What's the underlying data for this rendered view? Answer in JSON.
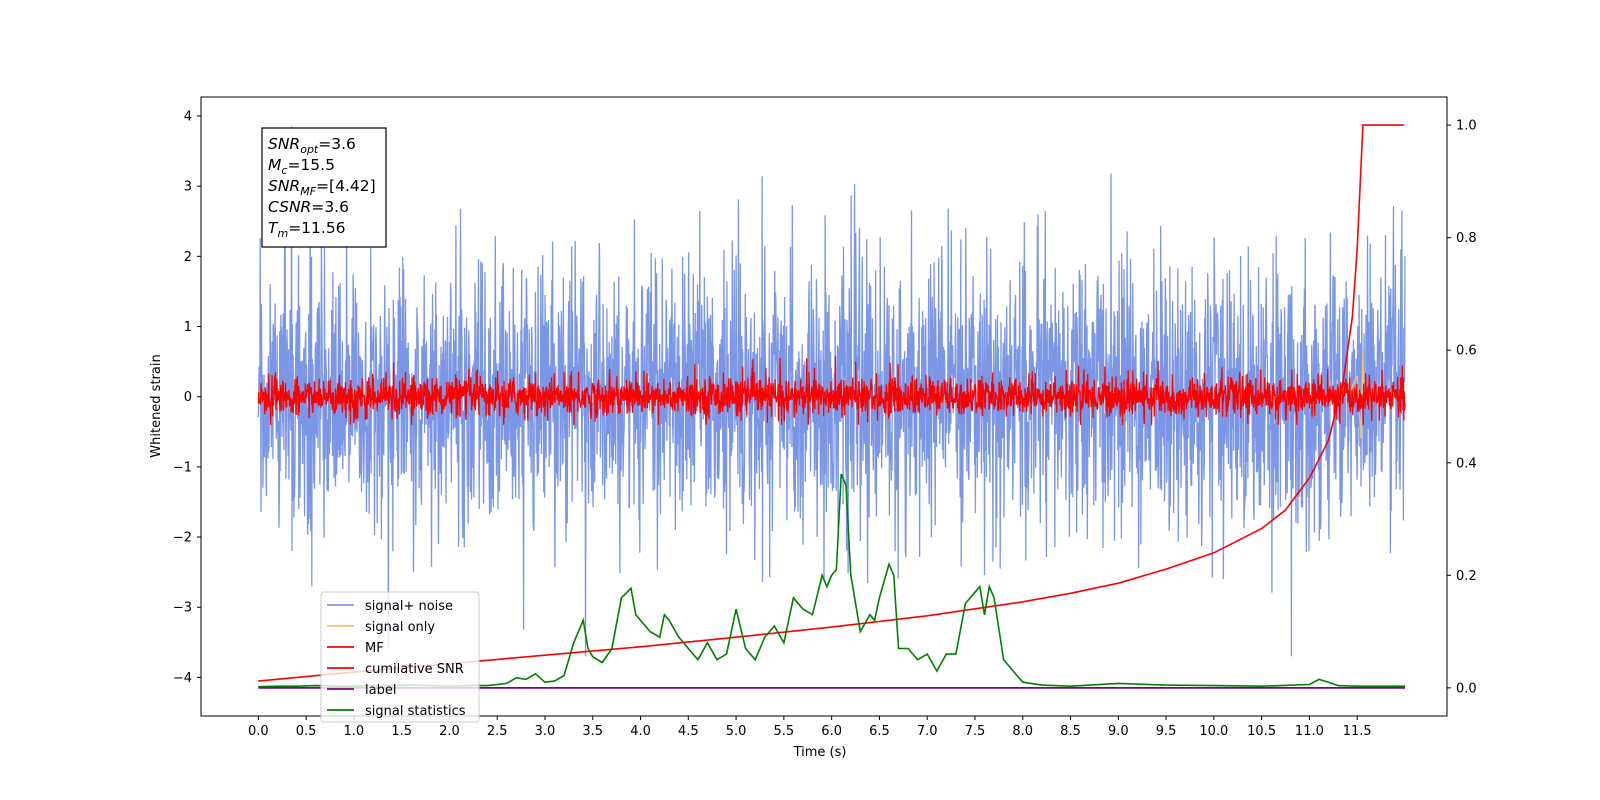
{
  "chart_data": {
    "type": "line",
    "xlabel": "Time (s)",
    "ylabel": "Whitened strain",
    "xlim": [
      -0.6,
      12.44
    ],
    "ylim": [
      -4.55,
      4.27
    ],
    "ylim_right": [
      -0.05,
      1.05
    ],
    "x_ticks": [
      "0.0",
      "0.5",
      "1.0",
      "1.5",
      "2.0",
      "2.5",
      "3.0",
      "3.5",
      "4.0",
      "4.5",
      "5.0",
      "5.5",
      "6.0",
      "6.5",
      "7.0",
      "7.5",
      "8.0",
      "8.5",
      "9.0",
      "9.5",
      "10.0",
      "10.5",
      "11.0",
      "11.5"
    ],
    "y_ticks": [
      "4",
      "3",
      "2",
      "1",
      "0",
      "−1",
      "−2",
      "−3",
      "−4"
    ],
    "y_ticks_right": [
      "1.0",
      "0.8",
      "0.6",
      "0.4",
      "0.2",
      "0.0"
    ],
    "annotation": {
      "lines": [
        {
          "base": "SNR",
          "sub": "opt",
          "rest": "=3.6"
        },
        {
          "base": "M",
          "sub": "c",
          "rest": "=15.5"
        },
        {
          "base": "SNR",
          "sub": "MF",
          "rest": "=[4.42]"
        },
        {
          "base": "CSNR",
          "sub": "",
          "rest": "=3.6"
        },
        {
          "base": "T",
          "sub": "m",
          "rest": "=11.56"
        }
      ]
    },
    "legend": {
      "placement": "lower-left",
      "entries": [
        {
          "label": "signal+ noise",
          "color": "#7b96e6"
        },
        {
          "label": "signal only",
          "color": "#f5c26b"
        },
        {
          "label": "MF",
          "color": "#ff0000"
        },
        {
          "label": "cumilative SNR",
          "color": "#ff0000"
        },
        {
          "label": "label",
          "color": "#800080"
        },
        {
          "label": "signal statistics",
          "color": "#008000"
        }
      ]
    },
    "series": [
      {
        "name": "signal+ noise",
        "axis": "left",
        "color": "#7b96e6",
        "x_range": [
          0.0,
          12.0
        ],
        "sample_step": 0.004,
        "approx_amplitude_range": [
          -3.7,
          3.85
        ],
        "note_kind": "dense noise"
      },
      {
        "name": "signal only",
        "axis": "left",
        "color": "#f5c26b",
        "x": [
          11.4,
          11.45,
          11.5,
          11.54,
          11.56,
          11.58,
          11.6
        ],
        "y": [
          0.0,
          0.15,
          0.3,
          -0.6,
          0.65,
          -0.1,
          0.0
        ]
      },
      {
        "name": "MF",
        "axis": "left",
        "color": "#ff0000",
        "x_range": [
          0.0,
          12.0
        ],
        "sample_step": 0.004,
        "approx_amplitude_range": [
          -0.4,
          1.0
        ]
      },
      {
        "name": "cumilative SNR",
        "axis": "right",
        "x": [
          0.0,
          0.5,
          1.0,
          2.0,
          3.0,
          4.0,
          5.0,
          6.0,
          7.0,
          8.0,
          8.5,
          9.0,
          9.5,
          10.0,
          10.5,
          10.75,
          11.0,
          11.2,
          11.35,
          11.45,
          11.5,
          11.56,
          11.6,
          11.8,
          11.99
        ],
        "y": [
          0.012,
          0.02,
          0.028,
          0.043,
          0.058,
          0.073,
          0.09,
          0.108,
          0.128,
          0.153,
          0.168,
          0.186,
          0.211,
          0.24,
          0.283,
          0.316,
          0.373,
          0.44,
          0.54,
          0.66,
          0.78,
          1.0,
          1.0,
          1.0,
          1.0
        ]
      },
      {
        "name": "label",
        "axis": "right",
        "color": "#800080",
        "x": [
          0.0,
          12.0
        ],
        "y": [
          0.0,
          0.0
        ]
      },
      {
        "name": "signal statistics",
        "axis": "right",
        "color": "#008000",
        "x": [
          0.0,
          0.2,
          0.4,
          0.6,
          0.8,
          1.0,
          1.2,
          1.4,
          1.6,
          1.8,
          2.0,
          2.2,
          2.4,
          2.6,
          2.7,
          2.8,
          2.9,
          3.0,
          3.1,
          3.2,
          3.3,
          3.4,
          3.45,
          3.5,
          3.6,
          3.7,
          3.8,
          3.9,
          3.95,
          4.0,
          4.1,
          4.2,
          4.25,
          4.3,
          4.4,
          4.5,
          4.6,
          4.7,
          4.8,
          4.9,
          5.0,
          5.1,
          5.2,
          5.3,
          5.4,
          5.5,
          5.6,
          5.7,
          5.8,
          5.9,
          5.95,
          6.0,
          6.05,
          6.1,
          6.15,
          6.2,
          6.3,
          6.4,
          6.45,
          6.5,
          6.6,
          6.65,
          6.7,
          6.8,
          6.9,
          7.0,
          7.1,
          7.2,
          7.3,
          7.4,
          7.5,
          7.55,
          7.6,
          7.65,
          7.7,
          7.8,
          7.9,
          8.0,
          8.2,
          8.5,
          9.0,
          9.5,
          10.0,
          10.5,
          11.0,
          11.1,
          11.2,
          11.3,
          11.5,
          12.0
        ],
        "y": [
          0.002,
          0.003,
          0.003,
          0.004,
          0.003,
          0.003,
          0.004,
          0.004,
          0.005,
          0.004,
          0.003,
          0.004,
          0.004,
          0.008,
          0.018,
          0.015,
          0.025,
          0.01,
          0.012,
          0.022,
          0.08,
          0.12,
          0.07,
          0.055,
          0.045,
          0.07,
          0.16,
          0.177,
          0.13,
          0.12,
          0.1,
          0.09,
          0.13,
          0.12,
          0.09,
          0.07,
          0.05,
          0.08,
          0.05,
          0.06,
          0.14,
          0.07,
          0.05,
          0.09,
          0.11,
          0.08,
          0.16,
          0.14,
          0.13,
          0.2,
          0.18,
          0.2,
          0.21,
          0.38,
          0.36,
          0.2,
          0.1,
          0.13,
          0.12,
          0.16,
          0.22,
          0.2,
          0.07,
          0.07,
          0.05,
          0.06,
          0.03,
          0.06,
          0.06,
          0.15,
          0.17,
          0.18,
          0.13,
          0.18,
          0.16,
          0.05,
          0.03,
          0.01,
          0.005,
          0.003,
          0.008,
          0.005,
          0.004,
          0.003,
          0.006,
          0.015,
          0.01,
          0.004,
          0.003,
          0.003
        ]
      }
    ]
  }
}
